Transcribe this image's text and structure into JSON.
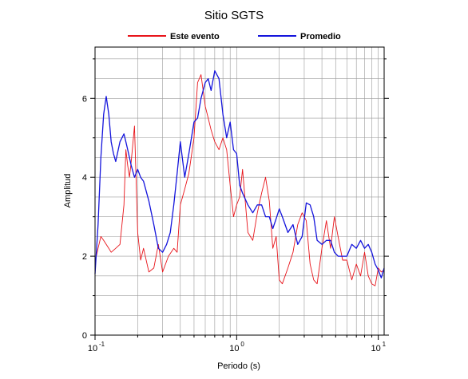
{
  "chart_data": {
    "type": "line",
    "title": "Sitio SGTS",
    "xlabel": "Periodo (s)",
    "ylabel": "Amplitud",
    "x_scale": "log",
    "xlim": [
      0.1,
      11
    ],
    "ylim": [
      0,
      7.3
    ],
    "grid": true,
    "legend_position": "top",
    "y_ticks": [
      0,
      2,
      4,
      6
    ],
    "y_tick_labels": [
      "0",
      "2",
      "4",
      "6"
    ],
    "x_ticks": [
      0.1,
      1,
      10
    ],
    "x_tick_labels": [
      {
        "base": "10",
        "exp": "-1"
      },
      {
        "base": "10",
        "exp": "0"
      },
      {
        "base": "10",
        "exp": "1"
      }
    ],
    "series": [
      {
        "name": "Este evento",
        "color": "#e8141a",
        "x": [
          0.1,
          0.105,
          0.11,
          0.115,
          0.12,
          0.125,
          0.13,
          0.14,
          0.15,
          0.16,
          0.165,
          0.17,
          0.175,
          0.18,
          0.19,
          0.2,
          0.21,
          0.22,
          0.24,
          0.26,
          0.28,
          0.3,
          0.33,
          0.36,
          0.38,
          0.4,
          0.43,
          0.46,
          0.5,
          0.53,
          0.56,
          0.6,
          0.63,
          0.66,
          0.7,
          0.75,
          0.8,
          0.85,
          0.9,
          0.95,
          1.0,
          1.05,
          1.1,
          1.2,
          1.3,
          1.4,
          1.5,
          1.6,
          1.7,
          1.8,
          1.9,
          2.0,
          2.1,
          2.3,
          2.5,
          2.7,
          2.9,
          3.1,
          3.3,
          3.5,
          3.7,
          4.0,
          4.3,
          4.6,
          4.9,
          5.2,
          5.6,
          6.0,
          6.5,
          7.0,
          7.5,
          8.0,
          8.5,
          9.0,
          9.5,
          10.0,
          10.5,
          11.0
        ],
        "y": [
          1.85,
          2.2,
          2.5,
          2.4,
          2.3,
          2.2,
          2.1,
          2.2,
          2.3,
          3.3,
          4.7,
          4.3,
          4.0,
          4.4,
          5.3,
          2.6,
          1.9,
          2.2,
          1.6,
          1.7,
          2.3,
          1.6,
          2.0,
          2.2,
          2.1,
          3.3,
          3.7,
          4.1,
          5.0,
          6.4,
          6.6,
          5.8,
          5.5,
          5.2,
          4.9,
          4.7,
          5.0,
          4.7,
          3.8,
          3.0,
          3.3,
          3.5,
          4.2,
          2.6,
          2.4,
          3.1,
          3.6,
          4.0,
          3.4,
          2.2,
          2.5,
          1.4,
          1.3,
          1.7,
          2.1,
          2.8,
          3.1,
          2.9,
          1.8,
          1.4,
          1.3,
          2.2,
          2.9,
          2.2,
          3.0,
          2.5,
          1.9,
          1.9,
          1.4,
          1.8,
          1.5,
          2.1,
          1.5,
          1.3,
          1.25,
          1.7,
          1.6,
          1.65
        ]
      },
      {
        "name": "Promedio",
        "color": "#1414dc",
        "x": [
          0.1,
          0.105,
          0.11,
          0.115,
          0.12,
          0.125,
          0.13,
          0.135,
          0.14,
          0.15,
          0.16,
          0.165,
          0.17,
          0.18,
          0.19,
          0.2,
          0.21,
          0.22,
          0.24,
          0.26,
          0.28,
          0.3,
          0.32,
          0.34,
          0.36,
          0.38,
          0.4,
          0.43,
          0.46,
          0.5,
          0.53,
          0.56,
          0.6,
          0.63,
          0.66,
          0.7,
          0.75,
          0.8,
          0.85,
          0.9,
          0.95,
          1.0,
          1.05,
          1.1,
          1.2,
          1.3,
          1.4,
          1.5,
          1.6,
          1.7,
          1.8,
          1.9,
          2.0,
          2.1,
          2.3,
          2.5,
          2.7,
          2.9,
          3.1,
          3.3,
          3.5,
          3.7,
          4.0,
          4.3,
          4.6,
          4.9,
          5.2,
          5.6,
          6.0,
          6.5,
          7.0,
          7.5,
          8.0,
          8.5,
          9.0,
          9.5,
          10.0,
          10.5,
          11.0
        ],
        "y": [
          1.55,
          2.8,
          4.5,
          5.6,
          6.05,
          5.6,
          4.9,
          4.6,
          4.4,
          4.9,
          5.1,
          4.9,
          4.7,
          4.3,
          4.0,
          4.2,
          4.0,
          3.9,
          3.4,
          2.8,
          2.2,
          2.1,
          2.3,
          2.6,
          3.3,
          4.1,
          4.9,
          4.0,
          4.6,
          5.4,
          5.5,
          6.0,
          6.4,
          6.5,
          6.2,
          6.7,
          6.5,
          5.6,
          5.0,
          5.4,
          4.7,
          4.6,
          3.8,
          3.6,
          3.3,
          3.1,
          3.3,
          3.3,
          3.0,
          3.0,
          2.7,
          2.95,
          3.2,
          3.0,
          2.6,
          2.8,
          2.3,
          2.5,
          3.35,
          3.3,
          3.0,
          2.4,
          2.3,
          2.4,
          2.4,
          2.1,
          2.0,
          2.0,
          2.0,
          2.3,
          2.2,
          2.4,
          2.2,
          2.3,
          2.1,
          1.8,
          1.65,
          1.45,
          1.7
        ]
      }
    ]
  }
}
